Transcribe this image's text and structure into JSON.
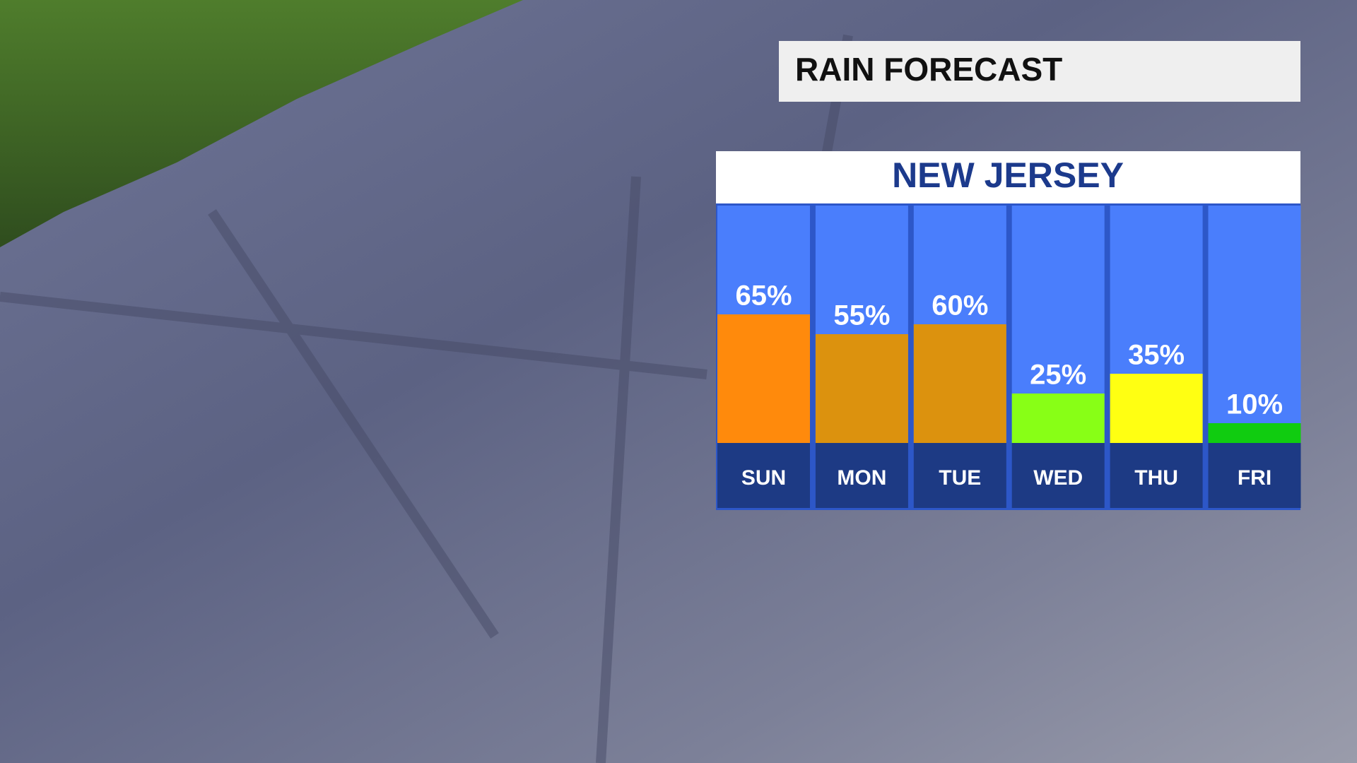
{
  "chart_data": {
    "type": "bar",
    "title": "RAIN FORECAST",
    "subtitle": "NEW JERSEY",
    "categories": [
      "SUN",
      "MON",
      "TUE",
      "WED",
      "THU",
      "FRI"
    ],
    "values": [
      65,
      55,
      60,
      25,
      35,
      10
    ],
    "value_labels": [
      "65%",
      "55%",
      "60%",
      "25%",
      "35%",
      "10%"
    ],
    "colors": [
      "#ff8a0c",
      "#dc920e",
      "#dc920e",
      "#88ff16",
      "#ffff12",
      "#10cc10"
    ]
  }
}
